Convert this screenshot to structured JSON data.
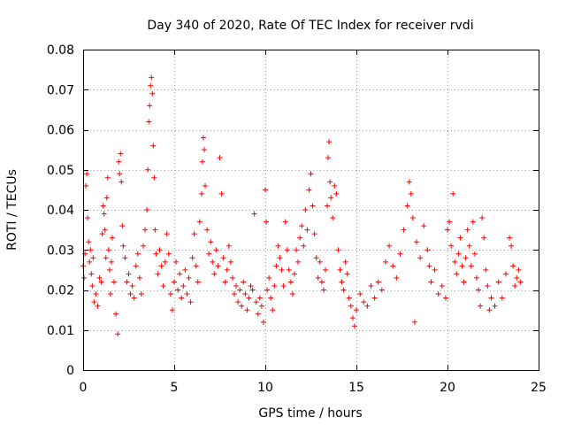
{
  "chart_data": {
    "type": "scatter",
    "title": "Day 340 of 2020, Rate Of TEC Index for receiver rvdi",
    "xlabel": "GPS time / hours",
    "ylabel": "ROTI / TECUs",
    "xlim": [
      0,
      25
    ],
    "ylim": [
      0,
      0.08
    ],
    "x_ticks": [
      "0",
      "5",
      "10",
      "15",
      "20",
      "25"
    ],
    "y_ticks": [
      "0",
      "0.01",
      "0.02",
      "0.03",
      "0.04",
      "0.05",
      "0.06",
      "0.07",
      "0.08"
    ],
    "grid": true,
    "marker": "plus",
    "color": "#ff0000",
    "series": [
      {
        "points": [
          [
            0.0,
            0.026
          ],
          [
            0.05,
            0.023
          ],
          [
            0.1,
            0.029
          ],
          [
            0.15,
            0.046
          ],
          [
            0.2,
            0.049
          ],
          [
            0.25,
            0.038
          ],
          [
            0.3,
            0.032
          ],
          [
            0.35,
            0.027
          ],
          [
            0.4,
            0.03
          ],
          [
            0.45,
            0.024
          ],
          [
            0.5,
            0.021
          ],
          [
            0.55,
            0.028
          ],
          [
            0.6,
            0.017
          ],
          [
            0.7,
            0.019
          ],
          [
            0.8,
            0.016
          ],
          [
            0.9,
            0.023
          ],
          [
            1.0,
            0.022
          ],
          [
            1.05,
            0.034
          ],
          [
            1.1,
            0.041
          ],
          [
            1.15,
            0.039
          ],
          [
            1.2,
            0.035
          ],
          [
            1.25,
            0.028
          ],
          [
            1.3,
            0.043
          ],
          [
            1.35,
            0.048
          ],
          [
            1.4,
            0.03
          ],
          [
            1.45,
            0.025
          ],
          [
            1.5,
            0.019
          ],
          [
            1.55,
            0.027
          ],
          [
            1.6,
            0.033
          ],
          [
            1.7,
            0.022
          ],
          [
            1.8,
            0.014
          ],
          [
            1.9,
            0.009
          ],
          [
            1.95,
            0.052
          ],
          [
            2.0,
            0.049
          ],
          [
            2.05,
            0.054
          ],
          [
            2.1,
            0.047
          ],
          [
            2.15,
            0.036
          ],
          [
            2.2,
            0.031
          ],
          [
            2.3,
            0.028
          ],
          [
            2.4,
            0.022
          ],
          [
            2.5,
            0.024
          ],
          [
            2.6,
            0.019
          ],
          [
            2.7,
            0.021
          ],
          [
            2.8,
            0.018
          ],
          [
            2.9,
            0.026
          ],
          [
            3.0,
            0.029
          ],
          [
            3.1,
            0.023
          ],
          [
            3.2,
            0.019
          ],
          [
            3.3,
            0.031
          ],
          [
            3.4,
            0.035
          ],
          [
            3.5,
            0.04
          ],
          [
            3.55,
            0.05
          ],
          [
            3.6,
            0.062
          ],
          [
            3.65,
            0.066
          ],
          [
            3.7,
            0.071
          ],
          [
            3.75,
            0.073
          ],
          [
            3.8,
            0.069
          ],
          [
            3.85,
            0.056
          ],
          [
            3.9,
            0.048
          ],
          [
            3.95,
            0.035
          ],
          [
            4.0,
            0.029
          ],
          [
            4.1,
            0.024
          ],
          [
            4.2,
            0.03
          ],
          [
            4.3,
            0.026
          ],
          [
            4.4,
            0.021
          ],
          [
            4.5,
            0.027
          ],
          [
            4.6,
            0.034
          ],
          [
            4.7,
            0.029
          ],
          [
            4.8,
            0.019
          ],
          [
            4.9,
            0.015
          ],
          [
            5.0,
            0.022
          ],
          [
            5.1,
            0.027
          ],
          [
            5.2,
            0.02
          ],
          [
            5.3,
            0.024
          ],
          [
            5.4,
            0.018
          ],
          [
            5.5,
            0.021
          ],
          [
            5.6,
            0.025
          ],
          [
            5.7,
            0.019
          ],
          [
            5.8,
            0.023
          ],
          [
            5.9,
            0.017
          ],
          [
            6.0,
            0.028
          ],
          [
            6.1,
            0.034
          ],
          [
            6.2,
            0.026
          ],
          [
            6.3,
            0.022
          ],
          [
            6.4,
            0.037
          ],
          [
            6.5,
            0.044
          ],
          [
            6.55,
            0.052
          ],
          [
            6.6,
            0.058
          ],
          [
            6.65,
            0.055
          ],
          [
            6.7,
            0.046
          ],
          [
            6.8,
            0.035
          ],
          [
            6.9,
            0.029
          ],
          [
            7.0,
            0.032
          ],
          [
            7.1,
            0.027
          ],
          [
            7.2,
            0.024
          ],
          [
            7.3,
            0.03
          ],
          [
            7.4,
            0.026
          ],
          [
            7.5,
            0.053
          ],
          [
            7.6,
            0.044
          ],
          [
            7.7,
            0.028
          ],
          [
            7.8,
            0.022
          ],
          [
            7.9,
            0.025
          ],
          [
            8.0,
            0.031
          ],
          [
            8.1,
            0.027
          ],
          [
            8.2,
            0.023
          ],
          [
            8.3,
            0.019
          ],
          [
            8.4,
            0.021
          ],
          [
            8.5,
            0.017
          ],
          [
            8.6,
            0.02
          ],
          [
            8.7,
            0.016
          ],
          [
            8.8,
            0.022
          ],
          [
            8.9,
            0.019
          ],
          [
            9.0,
            0.015
          ],
          [
            9.1,
            0.018
          ],
          [
            9.2,
            0.021
          ],
          [
            9.3,
            0.02
          ],
          [
            9.4,
            0.039
          ],
          [
            9.5,
            0.017
          ],
          [
            9.6,
            0.014
          ],
          [
            9.7,
            0.018
          ],
          [
            9.8,
            0.016
          ],
          [
            9.9,
            0.012
          ],
          [
            10.0,
            0.045
          ],
          [
            10.05,
            0.037
          ],
          [
            10.1,
            0.02
          ],
          [
            10.2,
            0.023
          ],
          [
            10.3,
            0.018
          ],
          [
            10.4,
            0.015
          ],
          [
            10.5,
            0.021
          ],
          [
            10.6,
            0.026
          ],
          [
            10.7,
            0.031
          ],
          [
            10.8,
            0.028
          ],
          [
            10.9,
            0.025
          ],
          [
            11.0,
            0.021
          ],
          [
            11.1,
            0.037
          ],
          [
            11.2,
            0.03
          ],
          [
            11.3,
            0.025
          ],
          [
            11.4,
            0.022
          ],
          [
            11.5,
            0.019
          ],
          [
            11.6,
            0.024
          ],
          [
            11.7,
            0.03
          ],
          [
            11.8,
            0.027
          ],
          [
            11.9,
            0.033
          ],
          [
            12.0,
            0.036
          ],
          [
            12.1,
            0.031
          ],
          [
            12.2,
            0.04
          ],
          [
            12.3,
            0.035
          ],
          [
            12.4,
            0.045
          ],
          [
            12.5,
            0.049
          ],
          [
            12.6,
            0.041
          ],
          [
            12.7,
            0.034
          ],
          [
            12.8,
            0.028
          ],
          [
            12.9,
            0.023
          ],
          [
            13.0,
            0.027
          ],
          [
            13.1,
            0.022
          ],
          [
            13.2,
            0.02
          ],
          [
            13.3,
            0.025
          ],
          [
            13.4,
            0.041
          ],
          [
            13.45,
            0.053
          ],
          [
            13.5,
            0.057
          ],
          [
            13.55,
            0.047
          ],
          [
            13.6,
            0.043
          ],
          [
            13.7,
            0.038
          ],
          [
            13.8,
            0.046
          ],
          [
            13.9,
            0.044
          ],
          [
            14.0,
            0.03
          ],
          [
            14.1,
            0.025
          ],
          [
            14.2,
            0.022
          ],
          [
            14.3,
            0.02
          ],
          [
            14.4,
            0.027
          ],
          [
            14.5,
            0.024
          ],
          [
            14.6,
            0.018
          ],
          [
            14.7,
            0.016
          ],
          [
            14.8,
            0.013
          ],
          [
            14.9,
            0.011
          ],
          [
            15.0,
            0.015
          ],
          [
            15.2,
            0.019
          ],
          [
            15.4,
            0.017
          ],
          [
            15.6,
            0.016
          ],
          [
            15.8,
            0.021
          ],
          [
            16.0,
            0.018
          ],
          [
            16.2,
            0.022
          ],
          [
            16.4,
            0.02
          ],
          [
            16.6,
            0.027
          ],
          [
            16.8,
            0.031
          ],
          [
            17.0,
            0.026
          ],
          [
            17.2,
            0.023
          ],
          [
            17.4,
            0.029
          ],
          [
            17.6,
            0.035
          ],
          [
            17.8,
            0.041
          ],
          [
            17.9,
            0.047
          ],
          [
            18.0,
            0.044
          ],
          [
            18.1,
            0.038
          ],
          [
            18.2,
            0.012
          ],
          [
            18.3,
            0.032
          ],
          [
            18.5,
            0.028
          ],
          [
            18.7,
            0.036
          ],
          [
            18.9,
            0.03
          ],
          [
            19.0,
            0.026
          ],
          [
            19.1,
            0.022
          ],
          [
            19.3,
            0.025
          ],
          [
            19.5,
            0.019
          ],
          [
            19.7,
            0.021
          ],
          [
            19.9,
            0.018
          ],
          [
            20.0,
            0.035
          ],
          [
            20.1,
            0.037
          ],
          [
            20.2,
            0.031
          ],
          [
            20.3,
            0.044
          ],
          [
            20.4,
            0.027
          ],
          [
            20.5,
            0.024
          ],
          [
            20.6,
            0.029
          ],
          [
            20.7,
            0.033
          ],
          [
            20.8,
            0.026
          ],
          [
            20.9,
            0.022
          ],
          [
            21.0,
            0.028
          ],
          [
            21.1,
            0.035
          ],
          [
            21.2,
            0.031
          ],
          [
            21.3,
            0.026
          ],
          [
            21.4,
            0.037
          ],
          [
            21.5,
            0.029
          ],
          [
            21.6,
            0.023
          ],
          [
            21.7,
            0.02
          ],
          [
            21.8,
            0.016
          ],
          [
            21.9,
            0.038
          ],
          [
            22.0,
            0.033
          ],
          [
            22.1,
            0.025
          ],
          [
            22.2,
            0.021
          ],
          [
            22.3,
            0.015
          ],
          [
            22.4,
            0.018
          ],
          [
            22.6,
            0.016
          ],
          [
            22.8,
            0.022
          ],
          [
            23.0,
            0.018
          ],
          [
            23.2,
            0.024
          ],
          [
            23.4,
            0.033
          ],
          [
            23.5,
            0.031
          ],
          [
            23.6,
            0.026
          ],
          [
            23.7,
            0.021
          ],
          [
            23.8,
            0.023
          ],
          [
            23.9,
            0.025
          ],
          [
            24.0,
            0.022
          ]
        ]
      }
    ]
  }
}
